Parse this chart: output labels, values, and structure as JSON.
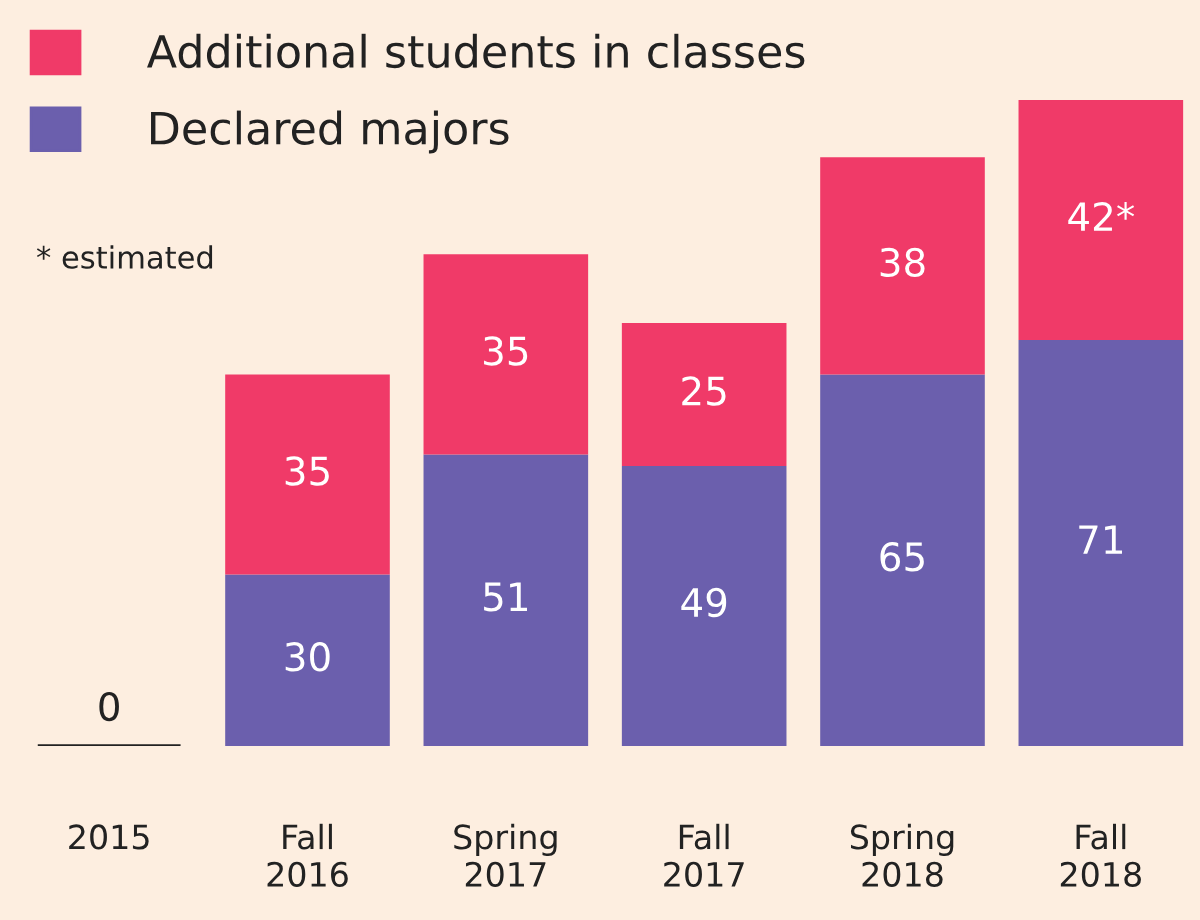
{
  "chart_data": {
    "type": "bar",
    "stacked": true,
    "categories": [
      "2015",
      "Fall\n2016",
      "Spring\n2017",
      "Fall\n2017",
      "Spring\n2018",
      "Fall\n2018"
    ],
    "series": [
      {
        "name": "Declared majors",
        "color": "#6b5fad",
        "values": [
          0,
          30,
          51,
          49,
          65,
          71
        ],
        "value_labels": [
          "0",
          "30",
          "51",
          "49",
          "65",
          "71"
        ]
      },
      {
        "name": "Additional students in classes",
        "color": "#f03a68",
        "values": [
          0,
          35,
          35,
          25,
          38,
          42
        ],
        "value_labels": [
          null,
          "35",
          "35",
          "25",
          "38",
          "42*"
        ]
      }
    ],
    "annotations": [
      "* estimated"
    ],
    "legend": "top left",
    "grid": false
  }
}
